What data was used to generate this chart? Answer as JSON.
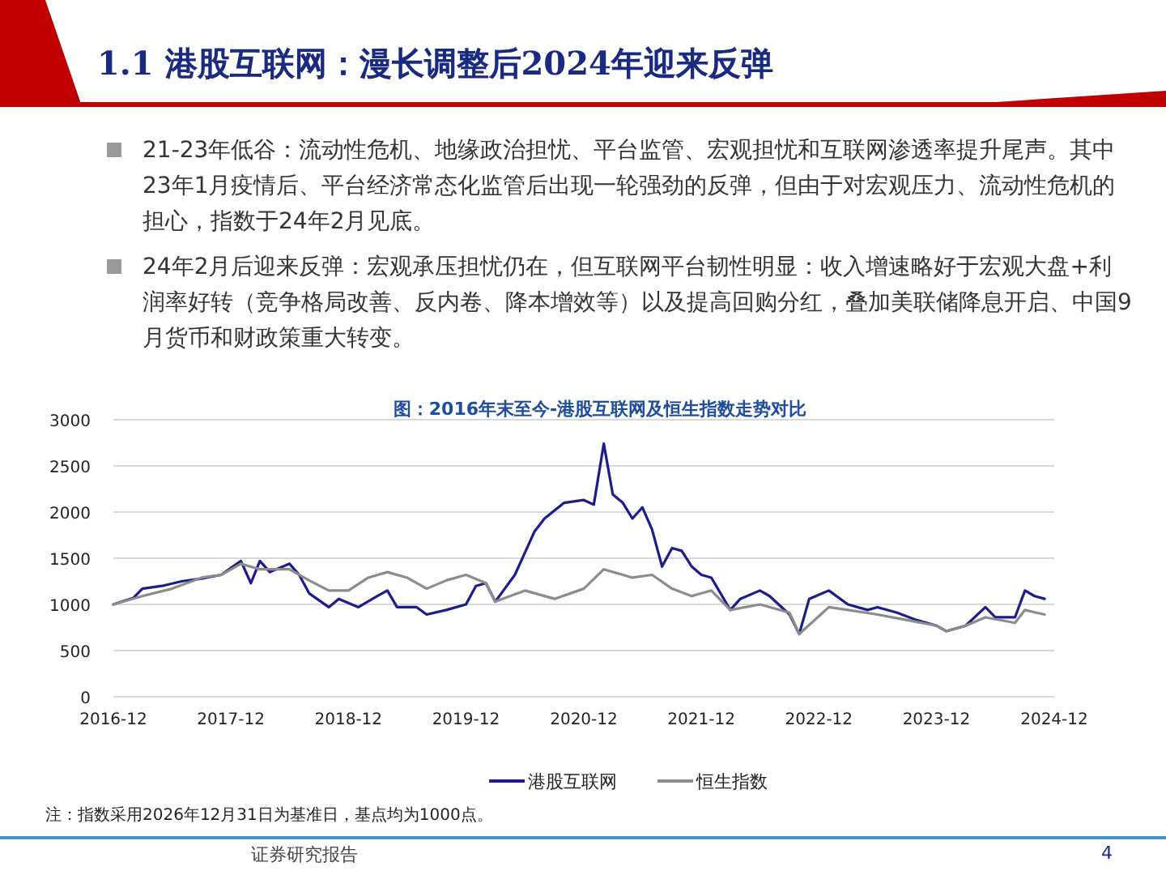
{
  "chart_data": {
    "type": "line",
    "title": "1.1 港股互联网：漫长调整后2024年迎来反弹",
    "subtitle": "图：2016年末至今-港股互联网及恒生指数走势对比",
    "x": [
      "2016-12",
      "2017-02",
      "2017-03",
      "2017-05",
      "2017-07",
      "2017-09",
      "2017-11",
      "2018-01",
      "2018-02",
      "2018-03",
      "2018-04",
      "2018-06",
      "2018-07",
      "2018-08",
      "2018-10",
      "2018-11",
      "2019-01",
      "2019-03",
      "2019-04",
      "2019-05",
      "2019-07",
      "2019-08",
      "2019-10",
      "2019-12",
      "2020-01",
      "2020-02",
      "2020-03",
      "2020-05",
      "2020-07",
      "2020-08",
      "2020-10",
      "2020-12",
      "2021-01",
      "2021-02",
      "2021-03",
      "2021-04",
      "2021-05",
      "2021-06",
      "2021-07",
      "2021-08",
      "2021-09",
      "2021-10",
      "2021-11",
      "2021-12",
      "2022-01",
      "2022-03",
      "2022-04",
      "2022-06",
      "2022-07",
      "2022-09",
      "2022-10",
      "2022-11",
      "2023-01",
      "2023-03",
      "2023-05",
      "2023-06",
      "2023-08",
      "2023-10",
      "2023-12",
      "2024-01",
      "2024-03",
      "2024-05",
      "2024-06",
      "2024-08",
      "2024-09",
      "2024-10",
      "2024-11"
    ],
    "series": [
      {
        "name": "港股互联网",
        "color": "#1c1c8a",
        "values": [
          1000,
          1070,
          1170,
          1200,
          1250,
          1280,
          1320,
          1470,
          1230,
          1470,
          1350,
          1440,
          1320,
          1120,
          970,
          1060,
          970,
          1090,
          1150,
          970,
          970,
          890,
          940,
          1000,
          1200,
          1230,
          1030,
          1320,
          1790,
          1930,
          2100,
          2130,
          2080,
          2740,
          2190,
          2100,
          1930,
          2050,
          1810,
          1410,
          1610,
          1580,
          1410,
          1320,
          1290,
          940,
          1060,
          1150,
          1090,
          890,
          680,
          1060,
          1150,
          1000,
          940,
          970,
          910,
          830,
          770,
          710,
          770,
          970,
          860,
          860,
          1150,
          1090,
          1060
        ]
      },
      {
        "name": "恒生指数",
        "color": "#8c8c8c",
        "x": [
          "2016-12",
          "2017-03",
          "2017-06",
          "2017-09",
          "2017-11",
          "2018-01",
          "2018-03",
          "2018-06",
          "2018-08",
          "2018-10",
          "2018-12",
          "2019-02",
          "2019-04",
          "2019-06",
          "2019-08",
          "2019-10",
          "2019-12",
          "2020-02",
          "2020-03",
          "2020-06",
          "2020-09",
          "2020-12",
          "2021-02",
          "2021-05",
          "2021-07",
          "2021-09",
          "2021-11",
          "2021-12",
          "2022-01",
          "2022-03",
          "2022-06",
          "2022-09",
          "2022-10",
          "2023-01",
          "2023-03",
          "2023-06",
          "2023-09",
          "2023-12",
          "2024-01",
          "2024-03",
          "2024-05",
          "2024-08",
          "2024-09",
          "2024-11"
        ],
        "values": [
          1000,
          1090,
          1170,
          1290,
          1320,
          1440,
          1380,
          1380,
          1260,
          1150,
          1150,
          1290,
          1350,
          1290,
          1170,
          1260,
          1320,
          1230,
          1030,
          1150,
          1060,
          1170,
          1380,
          1290,
          1320,
          1170,
          1090,
          1120,
          1150,
          940,
          1000,
          910,
          680,
          970,
          940,
          890,
          830,
          770,
          710,
          770,
          860,
          800,
          940,
          890
        ]
      }
    ],
    "xlim": [
      "2016-12",
      "2024-12"
    ],
    "xticks": [
      "2016-12",
      "2017-12",
      "2018-12",
      "2019-12",
      "2020-12",
      "2021-12",
      "2022-12",
      "2023-12",
      "2024-12"
    ],
    "ylim": [
      0,
      3000
    ],
    "yticks": [
      0,
      500,
      1000,
      1500,
      2000,
      2500,
      3000
    ],
    "grid": "y",
    "legend": "bottom",
    "annotations": [
      "21-23年低谷：流动性危机、地缘政治担忧、平台监管、宏观担忧和互联网渗透率提升尾声。其中23年1月疫情后、平台经济常态化监管后出现一轮强劲的反弹，但由于对宏观压力、流动性危机的担心，指数于24年2月见底。",
      "24年2月后迎来反弹：宏观承压担忧仍在，但互联网平台韧性明显：收入增速略好于宏观大盘+利润率好转（竞争格局改善、反内卷、降本增效等）以及提高回购分红，叠加美联储降息开启、中国9月货币和财政策重大转变。",
      "注：指数采用2026年12月31日为基准日，基点均为1000点。",
      "证券研究报告",
      "4"
    ]
  }
}
